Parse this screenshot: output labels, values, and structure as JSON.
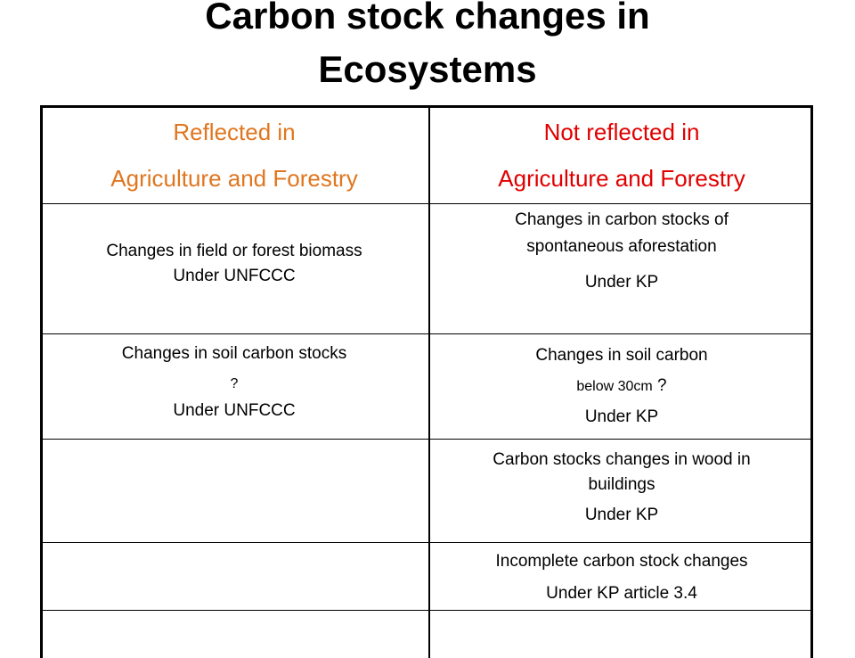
{
  "title_line1": "Carbon stock changes in",
  "title_line2": "Ecosystems",
  "headers": {
    "left": {
      "line1": "Reflected  in",
      "line2": "Agriculture and Forestry",
      "color": "#e0761f"
    },
    "right": {
      "line1": "Not reflected  in",
      "line2": "Agriculture and Forestry",
      "color": "#e00000"
    }
  },
  "rows": [
    {
      "left": {
        "line1": "Changes in field or forest  biomass",
        "line2": "Under UNFCCC"
      },
      "right": {
        "line1": "Changes in carbon stocks of",
        "line2": "spontaneous aforestation",
        "line3": "Under KP"
      }
    },
    {
      "left": {
        "line1": "Changes in soil carbon stocks",
        "line2": "?",
        "line3": "Under UNFCCC"
      },
      "right": {
        "line1": "Changes in soil carbon",
        "line2a": "below 30cm",
        "line2b": " ?",
        "line3": "Under KP"
      }
    },
    {
      "left": {},
      "right": {
        "line1": "Carbon stocks changes in wood in",
        "line2": "buildings",
        "line3": "Under KP"
      }
    },
    {
      "left": {},
      "right": {
        "line1": "Incomplete carbon stock changes",
        "line2": "Under  KP article 3.4"
      }
    },
    {
      "left": {},
      "right": {}
    }
  ]
}
